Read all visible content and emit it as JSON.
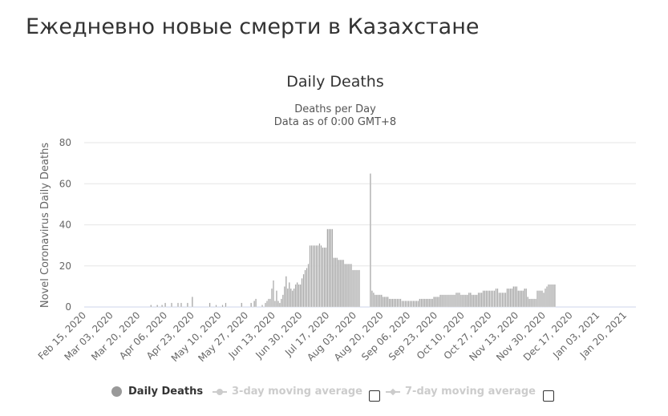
{
  "page": {
    "heading": "Ежедневно новые смерти в Казахстане"
  },
  "chart_data": {
    "type": "bar",
    "title": "Daily Deaths",
    "subtitle_line1": "Deaths per Day",
    "subtitle_line2": "Data as of 0:00 GMT+8",
    "ylabel": "Novel Coronavirus Daily Deaths",
    "xlabel": "",
    "ylim": [
      0,
      80
    ],
    "yticks": [
      0,
      20,
      40,
      60,
      80
    ],
    "grid": true,
    "bar_color": "#a6a6a6",
    "x_start": "2020-02-15",
    "x_end": "2021-01-27",
    "x_tick_labels": [
      "Feb 15, 2020",
      "Mar 03, 2020",
      "Mar 20, 2020",
      "Apr 06, 2020",
      "Apr 23, 2020",
      "May 10, 2020",
      "May 27, 2020",
      "Jun 13, 2020",
      "Jun 30, 2020",
      "Jul 17, 2020",
      "Aug 03, 2020",
      "Aug 20, 2020",
      "Sep 06, 2020",
      "Sep 23, 2020",
      "Oct 10, 2020",
      "Oct 27, 2020",
      "Nov 13, 2020",
      "Nov 30, 2020",
      "Dec 17, 2020",
      "Jan 03, 2021",
      "Jan 20, 2021"
    ],
    "series": [
      {
        "name": "Daily Deaths",
        "points": [
          [
            "2020-03-28",
            1
          ],
          [
            "2020-04-01",
            1
          ],
          [
            "2020-04-04",
            1
          ],
          [
            "2020-04-06",
            2
          ],
          [
            "2020-04-10",
            2
          ],
          [
            "2020-04-14",
            2
          ],
          [
            "2020-04-16",
            2
          ],
          [
            "2020-04-20",
            2
          ],
          [
            "2020-04-23",
            5
          ],
          [
            "2020-05-04",
            2
          ],
          [
            "2020-05-08",
            1
          ],
          [
            "2020-05-12",
            1
          ],
          [
            "2020-05-14",
            2
          ],
          [
            "2020-05-24",
            2
          ],
          [
            "2020-05-30",
            2
          ],
          [
            "2020-06-01",
            3
          ],
          [
            "2020-06-02",
            4
          ],
          [
            "2020-06-06",
            1
          ],
          [
            "2020-06-08",
            2
          ],
          [
            "2020-06-09",
            3
          ],
          [
            "2020-06-10",
            4
          ],
          [
            "2020-06-11",
            4
          ],
          [
            "2020-06-12",
            9
          ],
          [
            "2020-06-13",
            13
          ],
          [
            "2020-06-14",
            3
          ],
          [
            "2020-06-15",
            8
          ],
          [
            "2020-06-16",
            3
          ],
          [
            "2020-06-17",
            2
          ],
          [
            "2020-06-18",
            4
          ],
          [
            "2020-06-19",
            6
          ],
          [
            "2020-06-20",
            10
          ],
          [
            "2020-06-21",
            15
          ],
          [
            "2020-06-22",
            9
          ],
          [
            "2020-06-23",
            12
          ],
          [
            "2020-06-24",
            9
          ],
          [
            "2020-06-25",
            8
          ],
          [
            "2020-06-26",
            9
          ],
          [
            "2020-06-27",
            11
          ],
          [
            "2020-06-28",
            12
          ],
          [
            "2020-06-29",
            11
          ],
          [
            "2020-06-30",
            11
          ],
          [
            "2020-07-01",
            14
          ],
          [
            "2020-07-02",
            16
          ],
          [
            "2020-07-03",
            18
          ],
          [
            "2020-07-04",
            19
          ],
          [
            "2020-07-05",
            21
          ],
          [
            "2020-07-06",
            30
          ],
          [
            "2020-07-07",
            30
          ],
          [
            "2020-07-08",
            30
          ],
          [
            "2020-07-09",
            30
          ],
          [
            "2020-07-10",
            30
          ],
          [
            "2020-07-11",
            30
          ],
          [
            "2020-07-12",
            31
          ],
          [
            "2020-07-13",
            30
          ],
          [
            "2020-07-14",
            29
          ],
          [
            "2020-07-15",
            29
          ],
          [
            "2020-07-16",
            29
          ],
          [
            "2020-07-17",
            38
          ],
          [
            "2020-07-18",
            38
          ],
          [
            "2020-07-19",
            38
          ],
          [
            "2020-07-20",
            38
          ],
          [
            "2020-07-21",
            24
          ],
          [
            "2020-07-22",
            24
          ],
          [
            "2020-07-23",
            24
          ],
          [
            "2020-07-24",
            23
          ],
          [
            "2020-07-25",
            23
          ],
          [
            "2020-07-26",
            23
          ],
          [
            "2020-07-27",
            23
          ],
          [
            "2020-07-28",
            21
          ],
          [
            "2020-07-29",
            21
          ],
          [
            "2020-07-30",
            21
          ],
          [
            "2020-07-31",
            21
          ],
          [
            "2020-08-01",
            21
          ],
          [
            "2020-08-02",
            18
          ],
          [
            "2020-08-03",
            18
          ],
          [
            "2020-08-04",
            18
          ],
          [
            "2020-08-05",
            18
          ],
          [
            "2020-08-06",
            18
          ],
          [
            "2020-08-13",
            65
          ],
          [
            "2020-08-14",
            8
          ],
          [
            "2020-08-15",
            7
          ],
          [
            "2020-08-16",
            6
          ],
          [
            "2020-08-17",
            6
          ],
          [
            "2020-08-18",
            6
          ],
          [
            "2020-08-19",
            6
          ],
          [
            "2020-08-20",
            6
          ],
          [
            "2020-08-21",
            5
          ],
          [
            "2020-08-22",
            5
          ],
          [
            "2020-08-23",
            5
          ],
          [
            "2020-08-24",
            5
          ],
          [
            "2020-08-25",
            4
          ],
          [
            "2020-08-26",
            4
          ],
          [
            "2020-08-27",
            4
          ],
          [
            "2020-08-28",
            4
          ],
          [
            "2020-08-29",
            4
          ],
          [
            "2020-08-30",
            4
          ],
          [
            "2020-08-31",
            4
          ],
          [
            "2020-09-01",
            4
          ],
          [
            "2020-09-02",
            3
          ],
          [
            "2020-09-03",
            3
          ],
          [
            "2020-09-04",
            3
          ],
          [
            "2020-09-05",
            3
          ],
          [
            "2020-09-06",
            3
          ],
          [
            "2020-09-07",
            3
          ],
          [
            "2020-09-08",
            3
          ],
          [
            "2020-09-09",
            3
          ],
          [
            "2020-09-10",
            3
          ],
          [
            "2020-09-11",
            3
          ],
          [
            "2020-09-12",
            3
          ],
          [
            "2020-09-13",
            4
          ],
          [
            "2020-09-14",
            4
          ],
          [
            "2020-09-15",
            4
          ],
          [
            "2020-09-16",
            4
          ],
          [
            "2020-09-17",
            4
          ],
          [
            "2020-09-18",
            4
          ],
          [
            "2020-09-19",
            4
          ],
          [
            "2020-09-20",
            4
          ],
          [
            "2020-09-21",
            4
          ],
          [
            "2020-09-22",
            5
          ],
          [
            "2020-09-23",
            5
          ],
          [
            "2020-09-24",
            5
          ],
          [
            "2020-09-25",
            5
          ],
          [
            "2020-09-26",
            6
          ],
          [
            "2020-09-27",
            6
          ],
          [
            "2020-09-28",
            6
          ],
          [
            "2020-09-29",
            6
          ],
          [
            "2020-09-30",
            6
          ],
          [
            "2020-10-01",
            6
          ],
          [
            "2020-10-02",
            6
          ],
          [
            "2020-10-03",
            6
          ],
          [
            "2020-10-04",
            6
          ],
          [
            "2020-10-05",
            6
          ],
          [
            "2020-10-06",
            7
          ],
          [
            "2020-10-07",
            7
          ],
          [
            "2020-10-08",
            7
          ],
          [
            "2020-10-09",
            6
          ],
          [
            "2020-10-10",
            6
          ],
          [
            "2020-10-11",
            6
          ],
          [
            "2020-10-12",
            6
          ],
          [
            "2020-10-13",
            6
          ],
          [
            "2020-10-14",
            7
          ],
          [
            "2020-10-15",
            7
          ],
          [
            "2020-10-16",
            6
          ],
          [
            "2020-10-17",
            6
          ],
          [
            "2020-10-18",
            6
          ],
          [
            "2020-10-19",
            6
          ],
          [
            "2020-10-20",
            7
          ],
          [
            "2020-10-21",
            7
          ],
          [
            "2020-10-22",
            7
          ],
          [
            "2020-10-23",
            8
          ],
          [
            "2020-10-24",
            8
          ],
          [
            "2020-10-25",
            8
          ],
          [
            "2020-10-26",
            8
          ],
          [
            "2020-10-27",
            8
          ],
          [
            "2020-10-28",
            8
          ],
          [
            "2020-10-29",
            8
          ],
          [
            "2020-10-30",
            8
          ],
          [
            "2020-10-31",
            9
          ],
          [
            "2020-11-01",
            9
          ],
          [
            "2020-11-02",
            7
          ],
          [
            "2020-11-03",
            7
          ],
          [
            "2020-11-04",
            7
          ],
          [
            "2020-11-05",
            7
          ],
          [
            "2020-11-06",
            7
          ],
          [
            "2020-11-07",
            9
          ],
          [
            "2020-11-08",
            9
          ],
          [
            "2020-11-09",
            9
          ],
          [
            "2020-11-10",
            9
          ],
          [
            "2020-11-11",
            10
          ],
          [
            "2020-11-12",
            10
          ],
          [
            "2020-11-13",
            10
          ],
          [
            "2020-11-14",
            8
          ],
          [
            "2020-11-15",
            8
          ],
          [
            "2020-11-16",
            8
          ],
          [
            "2020-11-17",
            8
          ],
          [
            "2020-11-18",
            9
          ],
          [
            "2020-11-19",
            9
          ],
          [
            "2020-11-20",
            5
          ],
          [
            "2020-11-21",
            4
          ],
          [
            "2020-11-22",
            4
          ],
          [
            "2020-11-23",
            4
          ],
          [
            "2020-11-24",
            4
          ],
          [
            "2020-11-25",
            4
          ],
          [
            "2020-11-26",
            8
          ],
          [
            "2020-11-27",
            8
          ],
          [
            "2020-11-28",
            8
          ],
          [
            "2020-11-29",
            8
          ],
          [
            "2020-11-30",
            7
          ],
          [
            "2020-12-01",
            9
          ],
          [
            "2020-12-02",
            10
          ],
          [
            "2020-12-03",
            11
          ],
          [
            "2020-12-04",
            11
          ],
          [
            "2020-12-05",
            11
          ],
          [
            "2020-12-06",
            11
          ],
          [
            "2020-12-07",
            11
          ]
        ]
      }
    ]
  },
  "legend": {
    "daily_deaths": "Daily Deaths",
    "moving_avg_3": "3-day moving average",
    "moving_avg_7": "7-day moving average"
  },
  "colors": {
    "bar": "#a6a6a6",
    "grid": "#e6e6e6",
    "axis_text": "#666666",
    "legend_inactive": "#cccccc"
  }
}
